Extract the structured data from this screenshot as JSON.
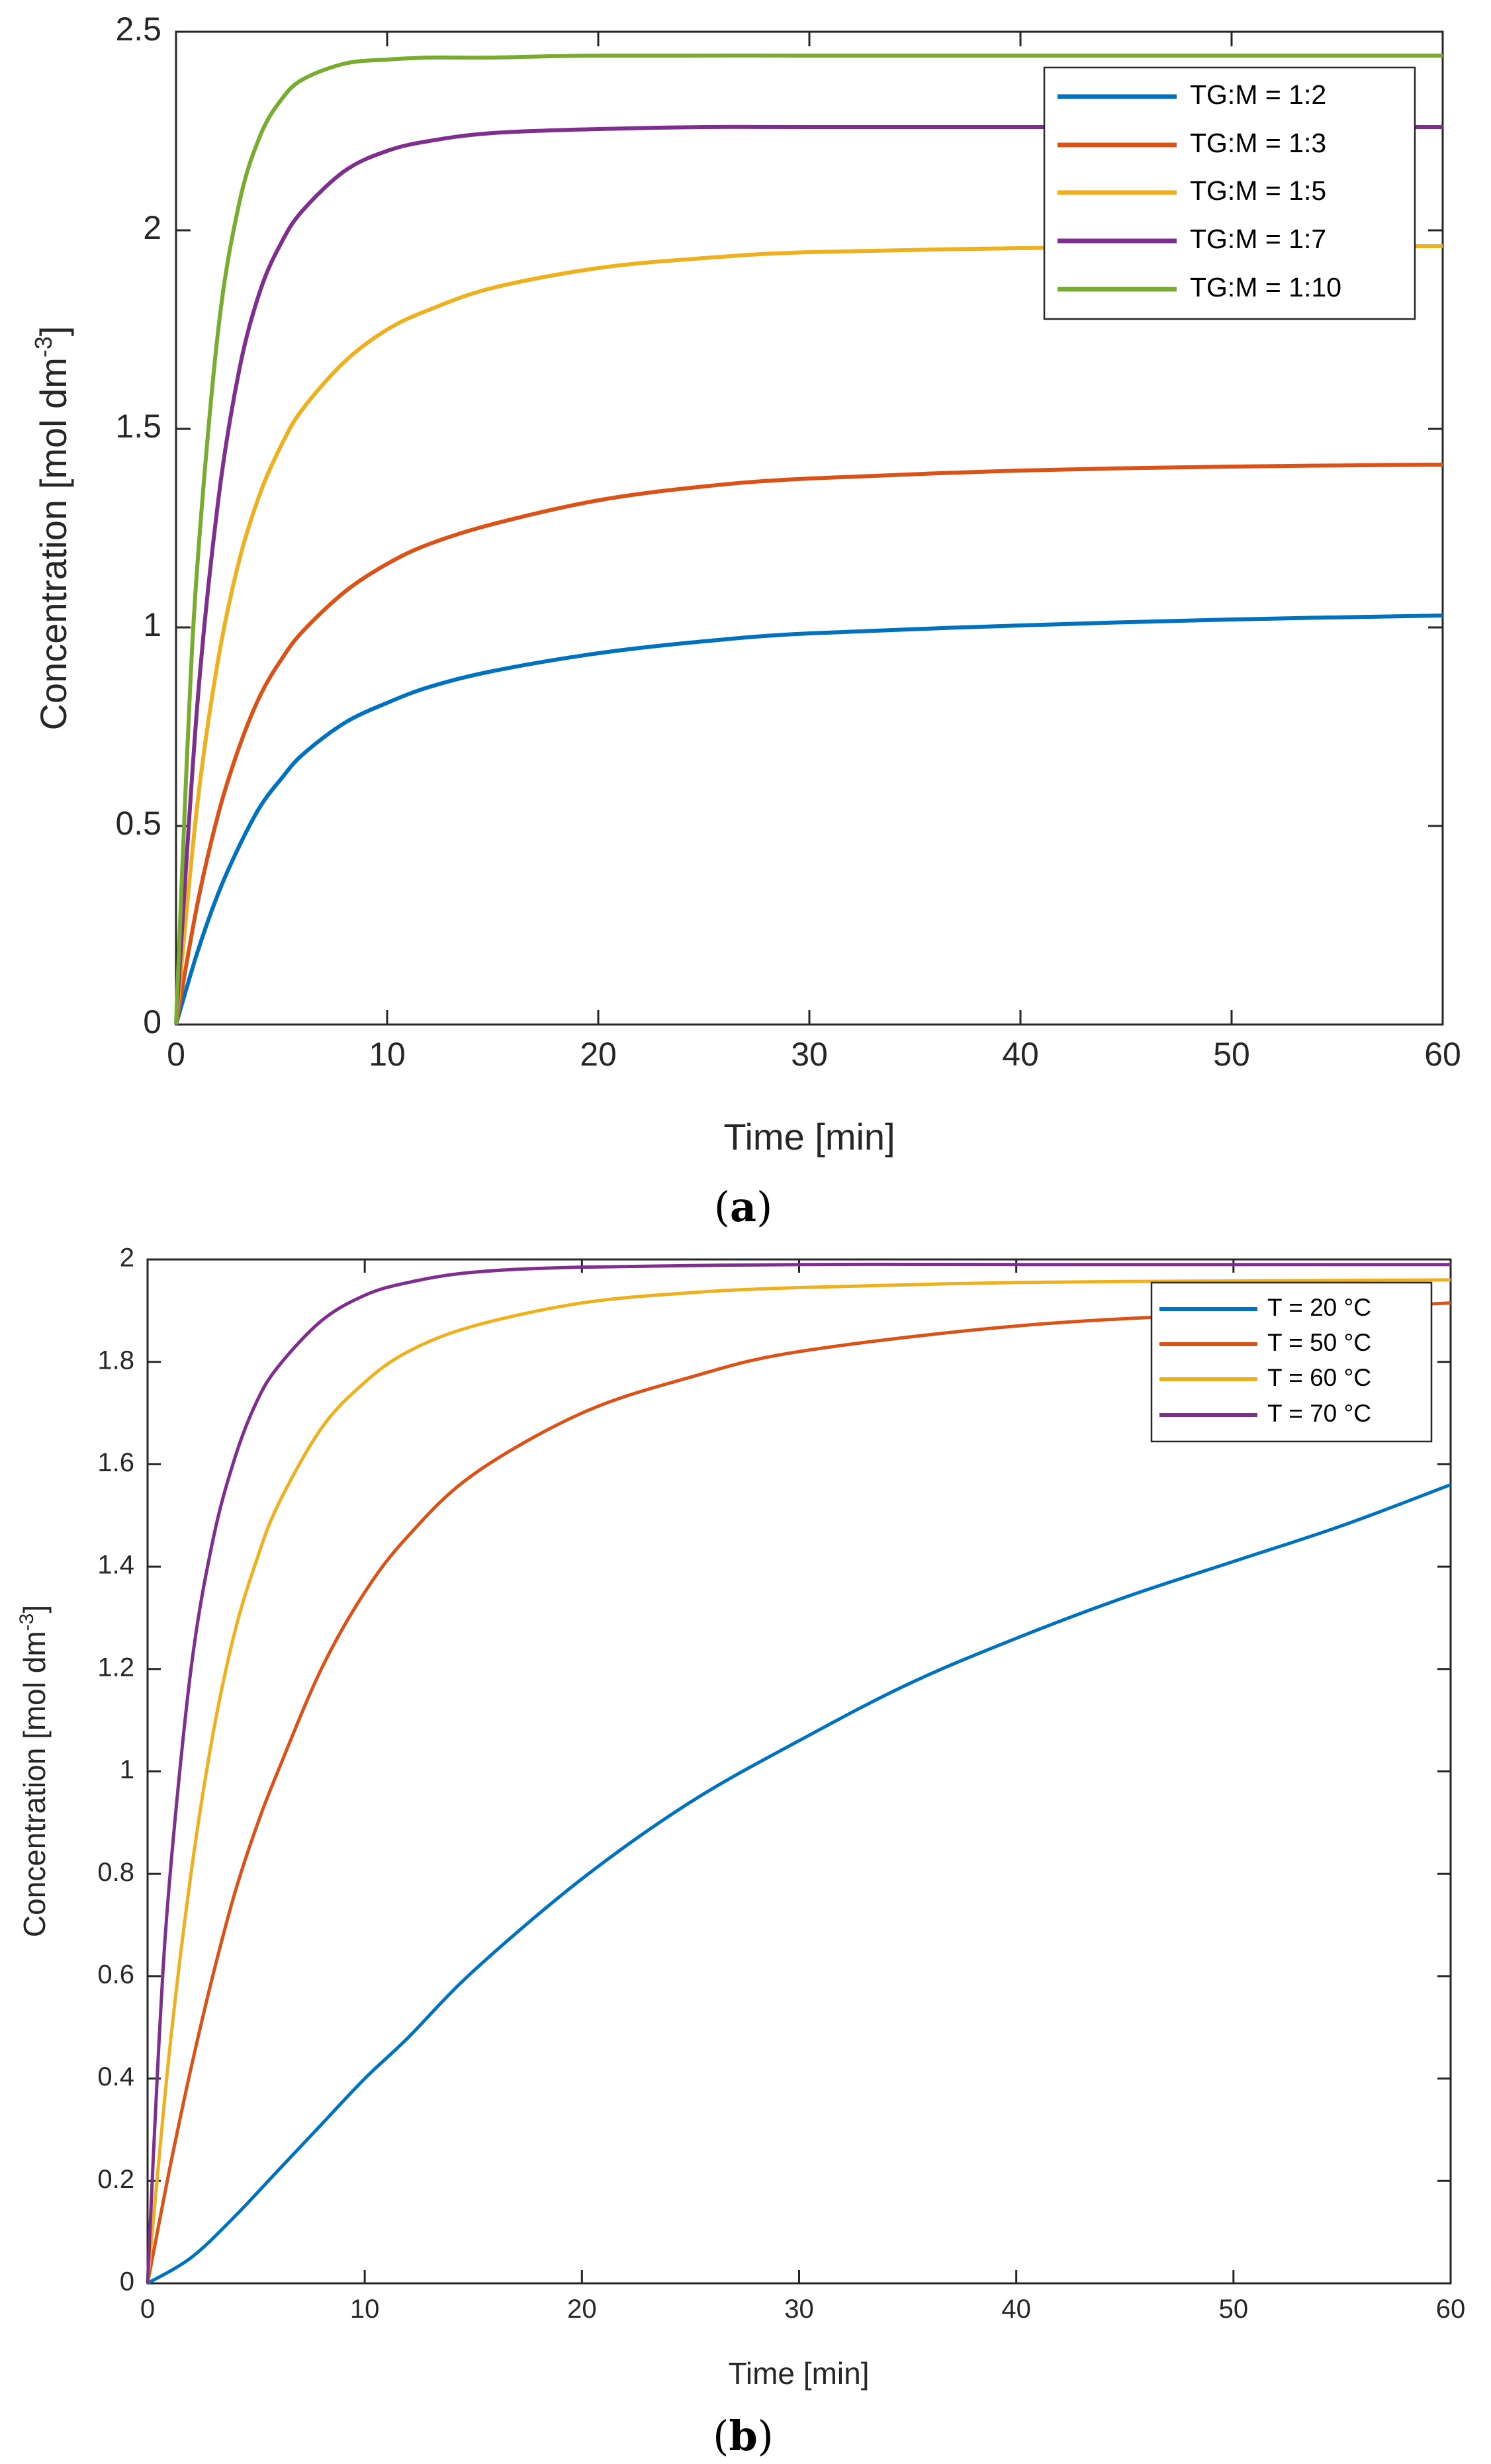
{
  "chart_data": [
    {
      "type": "line",
      "caption_letter": "a",
      "xlabel": "Time [min]",
      "ylabel_main": "Concentration [mol dm",
      "ylabel_sup": "-3",
      "ylabel_close": "]",
      "xlim": [
        0,
        60
      ],
      "ylim": [
        0,
        2.5
      ],
      "xticks": [
        0,
        10,
        20,
        30,
        40,
        50,
        60
      ],
      "yticks": [
        0,
        0.5,
        1,
        1.5,
        2,
        2.5
      ],
      "ytick_labels": [
        "0",
        "0.5",
        "1",
        "1.5",
        "2",
        "2.5"
      ],
      "legend_position": "top-right",
      "series": [
        {
          "name": "TG:M = 1:2",
          "color": "#0072BD",
          "x": [
            0,
            1,
            2,
            3,
            4,
            5,
            6,
            8,
            10,
            12,
            15,
            20,
            25,
            30,
            40,
            50,
            60
          ],
          "y": [
            0,
            0.18,
            0.33,
            0.45,
            0.55,
            0.62,
            0.68,
            0.76,
            0.81,
            0.85,
            0.89,
            0.935,
            0.965,
            0.985,
            1.005,
            1.02,
            1.03
          ]
        },
        {
          "name": "TG:M = 1:3",
          "color": "#D95319",
          "x": [
            0,
            1,
            2,
            3,
            4,
            5,
            6,
            8,
            10,
            12,
            15,
            20,
            25,
            30,
            40,
            50,
            60
          ],
          "y": [
            0,
            0.3,
            0.53,
            0.7,
            0.83,
            0.92,
            0.99,
            1.09,
            1.16,
            1.21,
            1.26,
            1.32,
            1.355,
            1.375,
            1.395,
            1.405,
            1.41
          ]
        },
        {
          "name": "TG:M = 1:5",
          "color": "#EDB120",
          "x": [
            0,
            1,
            2,
            3,
            4,
            5,
            6,
            8,
            10,
            12,
            15,
            20,
            25,
            30,
            40,
            50,
            60
          ],
          "y": [
            0,
            0.55,
            0.92,
            1.17,
            1.34,
            1.46,
            1.55,
            1.67,
            1.75,
            1.8,
            1.855,
            1.905,
            1.93,
            1.945,
            1.955,
            1.96,
            1.96
          ]
        },
        {
          "name": "TG:M = 1:7",
          "color": "#7E2F8E",
          "x": [
            0,
            1,
            2,
            3,
            4,
            5,
            6,
            8,
            10,
            12,
            15,
            20,
            25,
            30,
            40,
            50,
            60
          ],
          "y": [
            0,
            0.8,
            1.32,
            1.65,
            1.85,
            1.97,
            2.05,
            2.15,
            2.2,
            2.225,
            2.245,
            2.255,
            2.26,
            2.26,
            2.26,
            2.26,
            2.26
          ]
        },
        {
          "name": "TG:M = 1:10",
          "color": "#77AC30",
          "x": [
            0,
            0.5,
            1,
            2,
            3,
            4,
            5,
            6,
            8,
            10,
            12,
            15,
            20,
            30,
            40,
            50,
            60
          ],
          "y": [
            0,
            0.65,
            1.15,
            1.75,
            2.07,
            2.24,
            2.33,
            2.38,
            2.42,
            2.43,
            2.435,
            2.435,
            2.44,
            2.44,
            2.44,
            2.44,
            2.44
          ]
        }
      ]
    },
    {
      "type": "line",
      "caption_letter": "b",
      "xlabel": "Time [min]",
      "ylabel_main": "Concentration [mol dm",
      "ylabel_sup": "-3",
      "ylabel_close": "]",
      "xlim": [
        0,
        60
      ],
      "ylim": [
        0,
        2
      ],
      "xticks": [
        0,
        10,
        20,
        30,
        40,
        50,
        60
      ],
      "yticks": [
        0,
        0.2,
        0.4,
        0.6,
        0.8,
        1,
        1.2,
        1.4,
        1.6,
        1.8,
        2
      ],
      "ytick_labels": [
        "0",
        "0.2",
        "0.4",
        "0.6",
        "0.8",
        "1",
        "1.2",
        "1.4",
        "1.6",
        "1.8",
        "2"
      ],
      "legend_position": "top-right",
      "series": [
        {
          "name": "T = 20 °C",
          "color": "#0072BD",
          "x": [
            0,
            2,
            4,
            6,
            8,
            10,
            12,
            15,
            20,
            25,
            30,
            35,
            40,
            45,
            50,
            55,
            60
          ],
          "y": [
            0,
            0.05,
            0.13,
            0.22,
            0.31,
            0.4,
            0.48,
            0.61,
            0.79,
            0.94,
            1.06,
            1.17,
            1.26,
            1.34,
            1.41,
            1.48,
            1.56
          ]
        },
        {
          "name": "T = 50 °C",
          "color": "#D95319",
          "x": [
            0,
            1,
            2,
            3,
            4,
            5,
            6,
            8,
            10,
            12,
            15,
            20,
            25,
            30,
            40,
            50,
            60
          ],
          "y": [
            0,
            0.22,
            0.42,
            0.6,
            0.76,
            0.89,
            1.0,
            1.2,
            1.35,
            1.46,
            1.58,
            1.7,
            1.77,
            1.82,
            1.87,
            1.895,
            1.915
          ]
        },
        {
          "name": "T = 60 °C",
          "color": "#EDB120",
          "x": [
            0,
            1,
            2,
            3,
            4,
            5,
            6,
            8,
            10,
            12,
            15,
            20,
            25,
            30,
            40,
            50,
            60
          ],
          "y": [
            0,
            0.45,
            0.8,
            1.07,
            1.27,
            1.41,
            1.52,
            1.67,
            1.76,
            1.82,
            1.87,
            1.915,
            1.935,
            1.945,
            1.955,
            1.958,
            1.96
          ]
        },
        {
          "name": "T = 70 °C",
          "color": "#7E2F8E",
          "x": [
            0,
            0.5,
            1,
            2,
            3,
            4,
            5,
            6,
            8,
            10,
            12,
            15,
            20,
            30,
            40,
            50,
            60
          ],
          "y": [
            0,
            0.45,
            0.78,
            1.2,
            1.45,
            1.61,
            1.72,
            1.79,
            1.88,
            1.93,
            1.955,
            1.975,
            1.985,
            1.99,
            1.99,
            1.99,
            1.99
          ]
        }
      ]
    }
  ]
}
